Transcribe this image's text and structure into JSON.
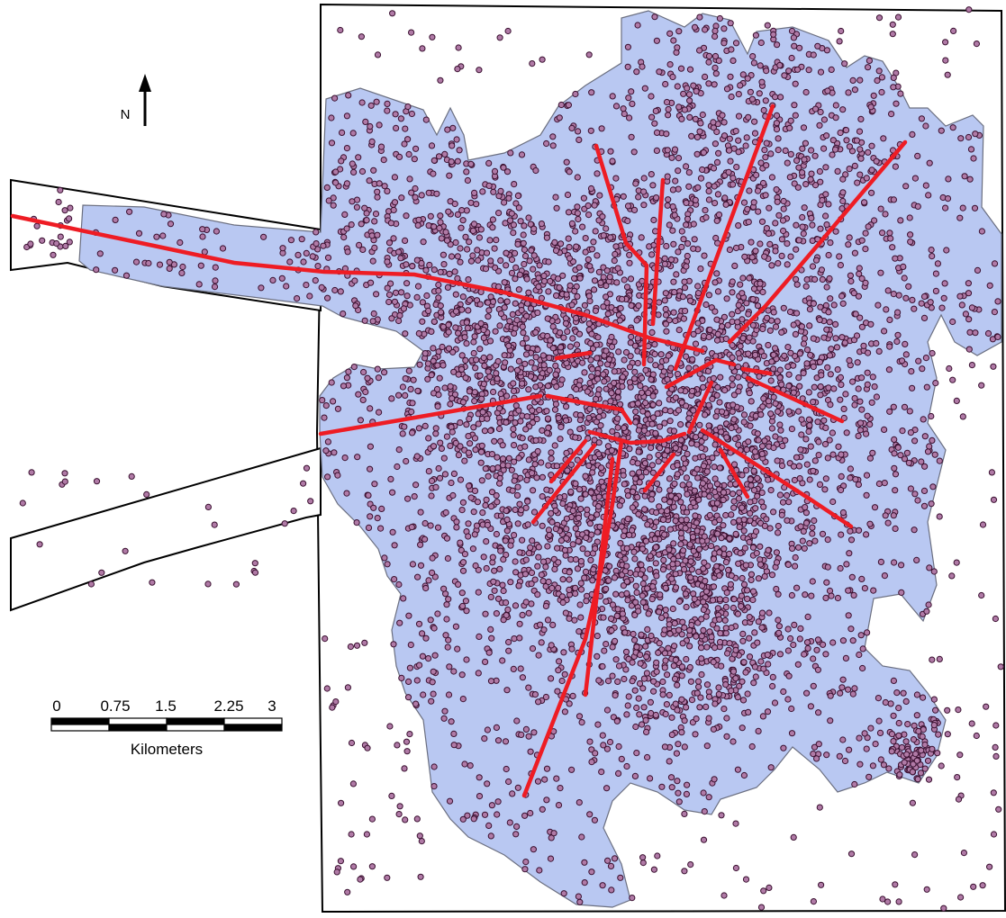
{
  "map": {
    "north_label": "N",
    "scale_bar": {
      "ticks": [
        "0",
        "0.75",
        "1.5",
        "2.25",
        "3"
      ],
      "unit_label": "Kilometers"
    },
    "colors": {
      "background": "#ffffff",
      "urban_area_fill": "#b9c8f2",
      "urban_area_outline": "#6b6f80",
      "boundary_outline": "#000000",
      "point_fill": "#b07aa6",
      "point_outline": "#3a1030",
      "road_lines": "#ee1c24"
    },
    "layers": [
      "study-area-boundary",
      "urban-extent-polygon",
      "point-locations",
      "radial-roads"
    ]
  }
}
